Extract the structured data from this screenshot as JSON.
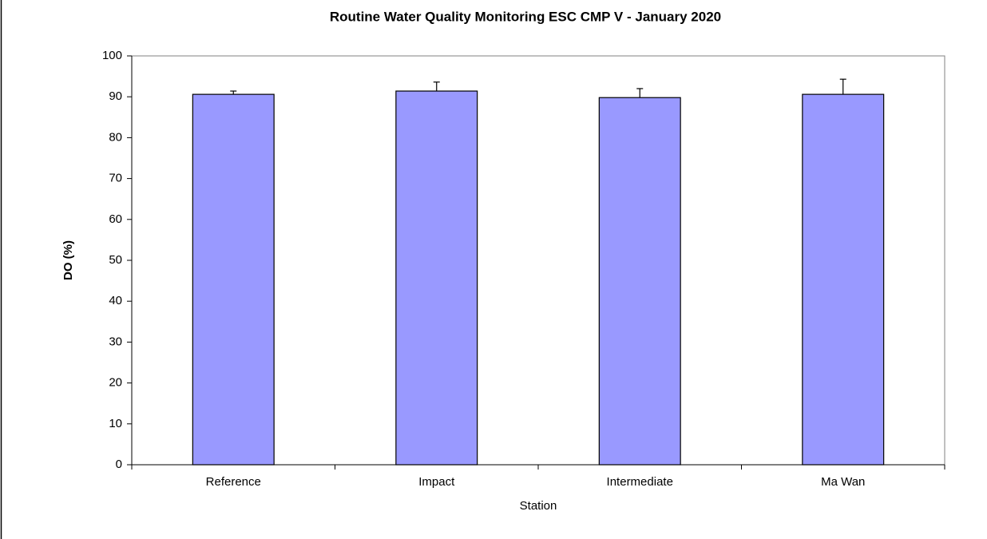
{
  "chart_data": {
    "type": "bar",
    "title": "Routine Water Quality Monitoring ESC CMP V - January 2020",
    "x_label": "Station",
    "y_label": "DO (%)",
    "categories": [
      "Reference",
      "Impact",
      "Intermediate",
      "Ma Wan"
    ],
    "values": [
      90.6,
      91.4,
      89.8,
      90.6
    ],
    "errors": [
      0.8,
      2.2,
      2.2,
      3.7
    ],
    "color": "#9999ff",
    "ylim": [
      0,
      100
    ],
    "yticks": [
      0,
      10,
      20,
      30,
      40,
      50,
      60,
      70,
      80,
      90,
      100
    ],
    "grid": false
  }
}
